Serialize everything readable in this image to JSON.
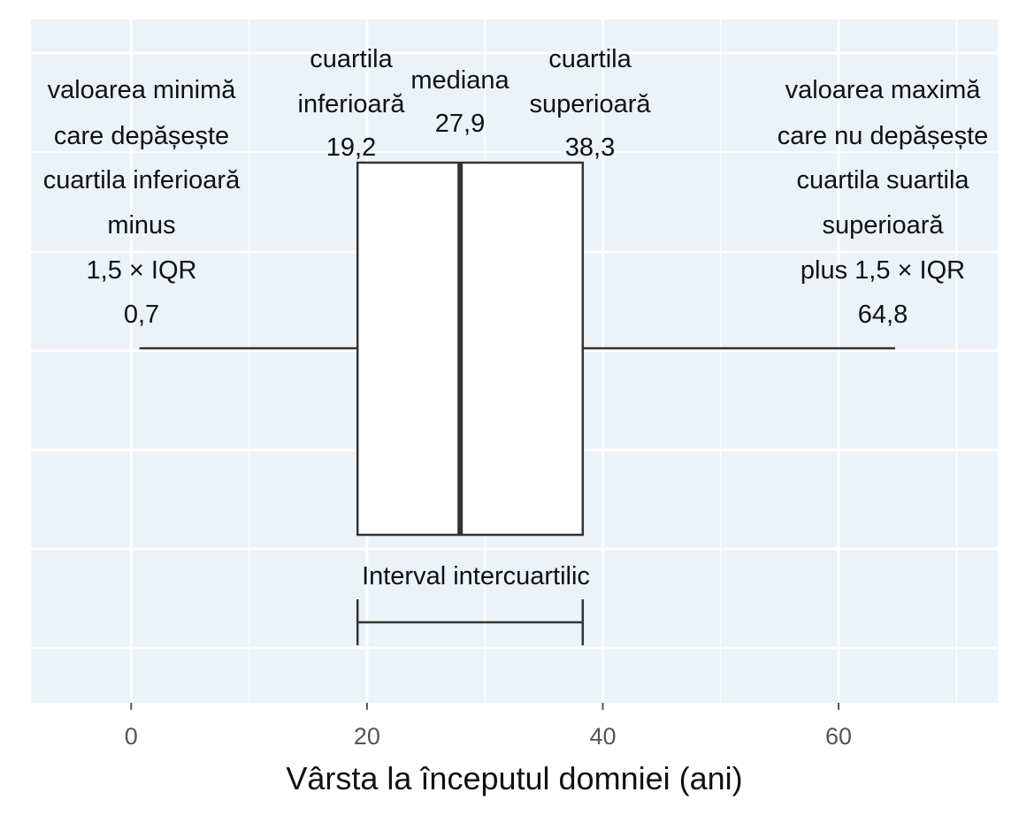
{
  "colors": {
    "panel_background": "#ebf2f8",
    "grid": "#ffffff",
    "box_fill": "#ffffff",
    "stroke": "#333333"
  },
  "chart_data": {
    "type": "boxplot",
    "title": "",
    "xlabel": "Vârsta la începutul domniei (ani)",
    "ylabel": "",
    "xlim": [
      -8.5,
      73.5
    ],
    "x_ticks": [
      0,
      20,
      40,
      60
    ],
    "x_tick_labels": [
      "0",
      "20",
      "40",
      "60"
    ],
    "grid": true,
    "box": {
      "whisker_low": 0.7,
      "q1": 19.2,
      "median": 27.9,
      "q3": 38.3,
      "whisker_high": 64.8
    },
    "annotations": {
      "min": {
        "lines": [
          "valoarea minimă",
          "care depășește",
          "cuartila inferioară",
          "minus",
          "1,5 × IQR"
        ],
        "value": "0,7"
      },
      "q1": {
        "lines": [
          "cuartila",
          "inferioară"
        ],
        "value": "19,2"
      },
      "median": {
        "lines": [
          "mediana"
        ],
        "value": "27,9"
      },
      "q3": {
        "lines": [
          "cuartila",
          "superioară"
        ],
        "value": "38,3"
      },
      "max": {
        "lines": [
          "valoarea maximă",
          "care nu depășește",
          "cuartila suartila",
          "superioară",
          "plus 1,5 × IQR"
        ],
        "value": "64,8"
      },
      "iqr": {
        "label": "Interval intercuartilic"
      }
    }
  }
}
